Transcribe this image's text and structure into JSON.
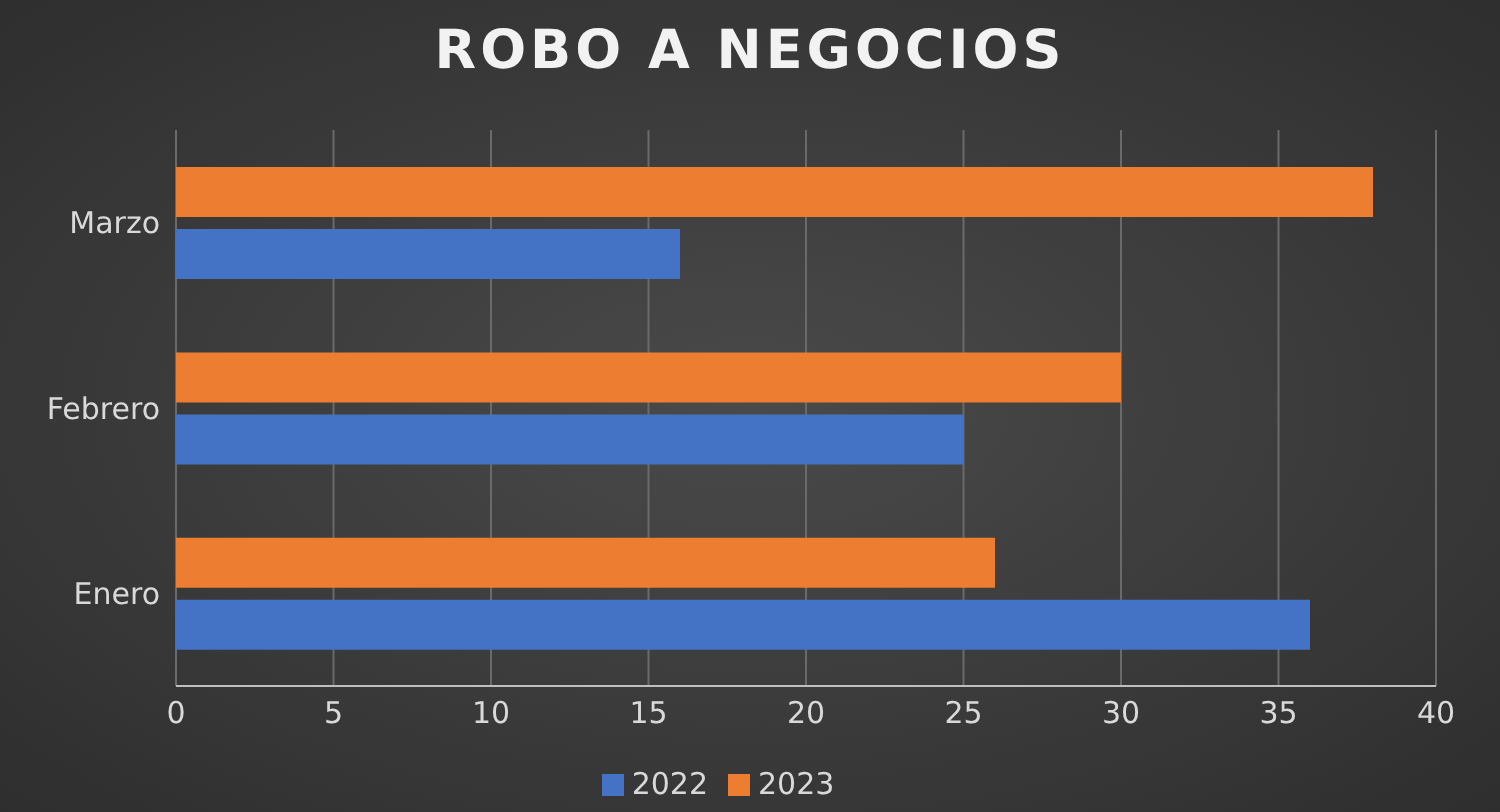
{
  "chart_data": {
    "type": "bar",
    "title": "ROBO A NEGOCIOS",
    "orientation": "horizontal",
    "categories": [
      "Marzo",
      "Febrero",
      "Enero"
    ],
    "series": [
      {
        "name": "2023",
        "color": "#ed7d31",
        "values": [
          38,
          30,
          26
        ]
      },
      {
        "name": "2022",
        "color": "#4472c4",
        "values": [
          16,
          25,
          36
        ]
      }
    ],
    "xlim": [
      0,
      40
    ],
    "xticks": [
      0,
      5,
      10,
      15,
      20,
      25,
      30,
      35,
      40
    ],
    "grid": "x",
    "legend": "bottom"
  }
}
